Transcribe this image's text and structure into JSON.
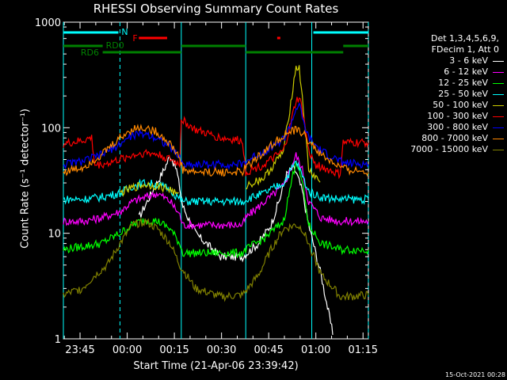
{
  "title": "RHESSI Observing Summary Count Rates",
  "xlabel": "Start Time (21-Apr-06 23:39:42)",
  "ylabel": "Count Rate (s⁻¹ detector⁻¹)",
  "footer_stamp": "15-Oct-2021 00:28",
  "legend": {
    "header_line1": "Det 1,3,4,5,6,9,",
    "header_line2": "FDecim 1, Att 0"
  },
  "colors": {
    "axes": "#ffffff",
    "cyan_marker": "#00ffff",
    "flare_marker": "#ff0000",
    "rd_marker": "#008000"
  },
  "bars": {
    "N_label": "N",
    "F_label": "F",
    "RD0_label": "RD0",
    "RD6_label": "RD6"
  },
  "chart_data": {
    "type": "line",
    "title": "RHESSI Observing Summary Count Rates",
    "xlabel": "Start Time (21-Apr-06 23:39:42)",
    "ylabel": "Count Rate (s⁻¹ detector⁻¹)",
    "x_units": "minutes after 23:39:42",
    "xlim": [
      0,
      97
    ],
    "ylim": [
      1,
      1000
    ],
    "yscale": "log",
    "xticks": [
      {
        "label": "23:45",
        "x": 5.3
      },
      {
        "label": "00:00",
        "x": 20.3
      },
      {
        "label": "00:15",
        "x": 35.3
      },
      {
        "label": "00:30",
        "x": 50.3
      },
      {
        "label": "00:45",
        "x": 65.3
      },
      {
        "label": "01:00",
        "x": 80.3
      },
      {
        "label": "01:15",
        "x": 95.3
      }
    ],
    "yticks": [
      {
        "label": "1",
        "y": 1
      },
      {
        "label": "10",
        "y": 10
      },
      {
        "label": "100",
        "y": 100
      },
      {
        "label": "1000",
        "y": 1000
      }
    ],
    "legend_position": "right",
    "vertical_lines": [
      0,
      18,
      37.5,
      58,
      79,
      97
    ],
    "series": [
      {
        "name": "3 - 6 keV",
        "color": "#ffffff",
        "x": [
          0,
          10,
          20,
          24,
          28,
          32,
          34,
          36,
          38,
          42,
          50,
          57,
          62,
          66,
          69,
          71,
          73,
          74,
          76,
          78,
          80,
          82,
          84,
          86,
          88,
          97
        ],
        "y": [
          null,
          null,
          null,
          14,
          24,
          40,
          55,
          40,
          18,
          10,
          6,
          6,
          8,
          12,
          22,
          36,
          42,
          38,
          25,
          12,
          7,
          4,
          2,
          1,
          null,
          null
        ]
      },
      {
        "name": "6 - 12 keV",
        "color": "#ff00ff",
        "x": [
          0,
          6,
          12,
          18,
          22,
          26,
          30,
          34,
          37,
          38,
          42,
          50,
          57,
          58,
          64,
          70,
          74,
          76,
          78,
          82,
          88,
          90,
          97
        ],
        "y": [
          13,
          13,
          14,
          16,
          20,
          22,
          24,
          20,
          15,
          12,
          12,
          12,
          12,
          14,
          20,
          28,
          55,
          40,
          20,
          14,
          13,
          13,
          13
        ]
      },
      {
        "name": "12 - 25 keV",
        "color": "#00ff00",
        "x": [
          0,
          6,
          12,
          18,
          22,
          26,
          30,
          34,
          37,
          38,
          42,
          50,
          57,
          58,
          64,
          70,
          74,
          76,
          78,
          82,
          88,
          90,
          97
        ],
        "y": [
          7,
          7.5,
          8,
          10,
          12,
          13.5,
          13,
          11,
          8,
          6.5,
          6.5,
          6.5,
          6.5,
          7,
          9,
          13,
          50,
          30,
          12,
          8,
          7,
          7,
          7
        ]
      },
      {
        "name": "25 - 50 keV",
        "color": "#00ffff",
        "x": [
          0,
          6,
          12,
          18,
          22,
          26,
          30,
          34,
          37,
          38,
          42,
          50,
          57,
          58,
          64,
          70,
          74,
          76,
          78,
          82,
          88,
          90,
          97
        ],
        "y": [
          21,
          21,
          22,
          24,
          28,
          30,
          29,
          26,
          21,
          20,
          20,
          20,
          20,
          21,
          24,
          30,
          48,
          35,
          25,
          22,
          21,
          21,
          21
        ]
      },
      {
        "name": "50 - 100 keV",
        "color": "#cccc00",
        "x": [
          0,
          6,
          12,
          18,
          22,
          26,
          30,
          34,
          37,
          38,
          42,
          50,
          57,
          58,
          64,
          70,
          72,
          74,
          75,
          76,
          78,
          82,
          88,
          90,
          97
        ],
        "y": [
          null,
          null,
          null,
          24,
          27,
          29,
          28,
          26,
          22,
          null,
          null,
          null,
          null,
          28,
          34,
          60,
          150,
          380,
          360,
          200,
          40,
          30,
          null,
          null,
          null
        ]
      },
      {
        "name": "100 - 300 keV",
        "color": "#ff0000",
        "x": [
          0,
          6,
          9,
          10,
          14,
          18,
          22,
          26,
          30,
          34,
          37,
          37.5,
          42,
          50,
          57,
          58,
          64,
          70,
          72,
          74,
          75,
          76,
          78,
          80,
          84,
          88,
          89,
          90,
          97
        ],
        "y": [
          70,
          75,
          80,
          44,
          46,
          50,
          55,
          58,
          56,
          50,
          45,
          120,
          95,
          80,
          75,
          38,
          45,
          60,
          100,
          180,
          190,
          150,
          60,
          45,
          40,
          36,
          72,
          72,
          72
        ]
      },
      {
        "name": "300 - 800 keV",
        "color": "#0000ff",
        "x": [
          0,
          6,
          12,
          18,
          22,
          26,
          30,
          34,
          37,
          38,
          42,
          50,
          57,
          58,
          64,
          70,
          72,
          74,
          75,
          76,
          78,
          82,
          88,
          90,
          97
        ],
        "y": [
          45,
          48,
          55,
          70,
          85,
          88,
          80,
          65,
          52,
          45,
          45,
          45,
          45,
          48,
          60,
          78,
          100,
          150,
          170,
          120,
          80,
          60,
          48,
          46,
          45
        ]
      },
      {
        "name": "800 - 7000 keV",
        "color": "#ff8800",
        "x": [
          0,
          6,
          12,
          18,
          22,
          26,
          30,
          34,
          37,
          38,
          42,
          50,
          57,
          58,
          64,
          70,
          74,
          76,
          78,
          82,
          88,
          90,
          97
        ],
        "y": [
          38,
          42,
          55,
          80,
          98,
          100,
          90,
          70,
          52,
          40,
          38,
          38,
          38,
          42,
          60,
          85,
          95,
          90,
          75,
          55,
          42,
          40,
          38
        ]
      },
      {
        "name": "7000 - 15000 keV",
        "color": "#808000",
        "x": [
          0,
          6,
          10,
          14,
          18,
          22,
          26,
          30,
          34,
          37,
          42,
          50,
          57,
          62,
          66,
          70,
          74,
          76,
          78,
          82,
          86,
          88,
          90,
          97
        ],
        "y": [
          2.6,
          3,
          4,
          5,
          8,
          12,
          13,
          11,
          8,
          5,
          3,
          2.5,
          2.6,
          4,
          7,
          11,
          12,
          11,
          8,
          4,
          3,
          2.5,
          2.5,
          2.6
        ]
      }
    ]
  }
}
